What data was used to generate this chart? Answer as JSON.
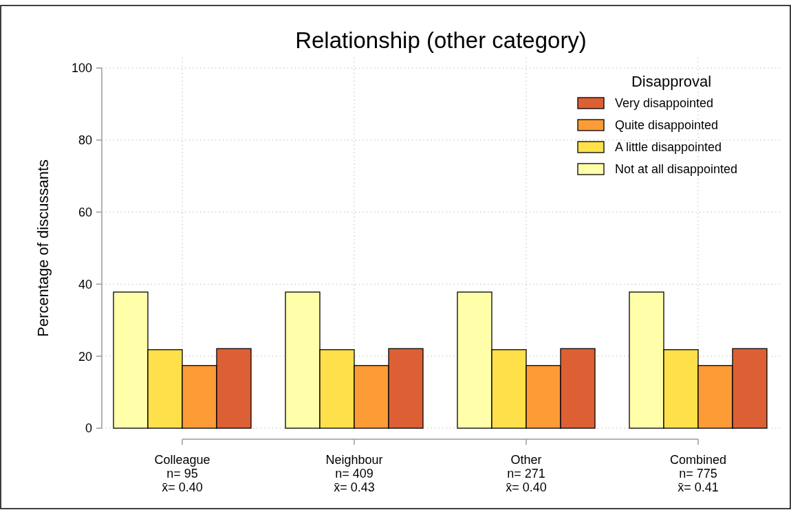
{
  "chart_data": {
    "type": "bar",
    "title": "Relationship (other category)",
    "ylabel": "Percentage of discussants",
    "legend_title": "Disapproval",
    "categories": [
      "Colleague\nn= 95\nx̄= 0.40",
      "Neighbour\nn= 409\nx̄= 0.43",
      "Other\nn= 271\nx̄= 0.40",
      "Combined\nn= 775\nx̄= 0.41"
    ],
    "series": [
      {
        "name": "Not at all disappointed",
        "color": "#ffffaa",
        "values": [
          37.8,
          37.8,
          37.8,
          37.8
        ]
      },
      {
        "name": "A little disappointed",
        "color": "#fee04b",
        "values": [
          21.8,
          21.8,
          21.8,
          21.8
        ]
      },
      {
        "name": "Quite disappointed",
        "color": "#fd9b37",
        "values": [
          17.4,
          17.4,
          17.4,
          17.4
        ]
      },
      {
        "name": "Very disappointed",
        "color": "#dc6034",
        "values": [
          22.1,
          22.1,
          22.1,
          22.1
        ]
      }
    ],
    "ylim": [
      0,
      100
    ],
    "yticks": [
      0,
      20,
      40,
      60,
      80,
      100
    ],
    "grid": true,
    "legend": "top right"
  }
}
